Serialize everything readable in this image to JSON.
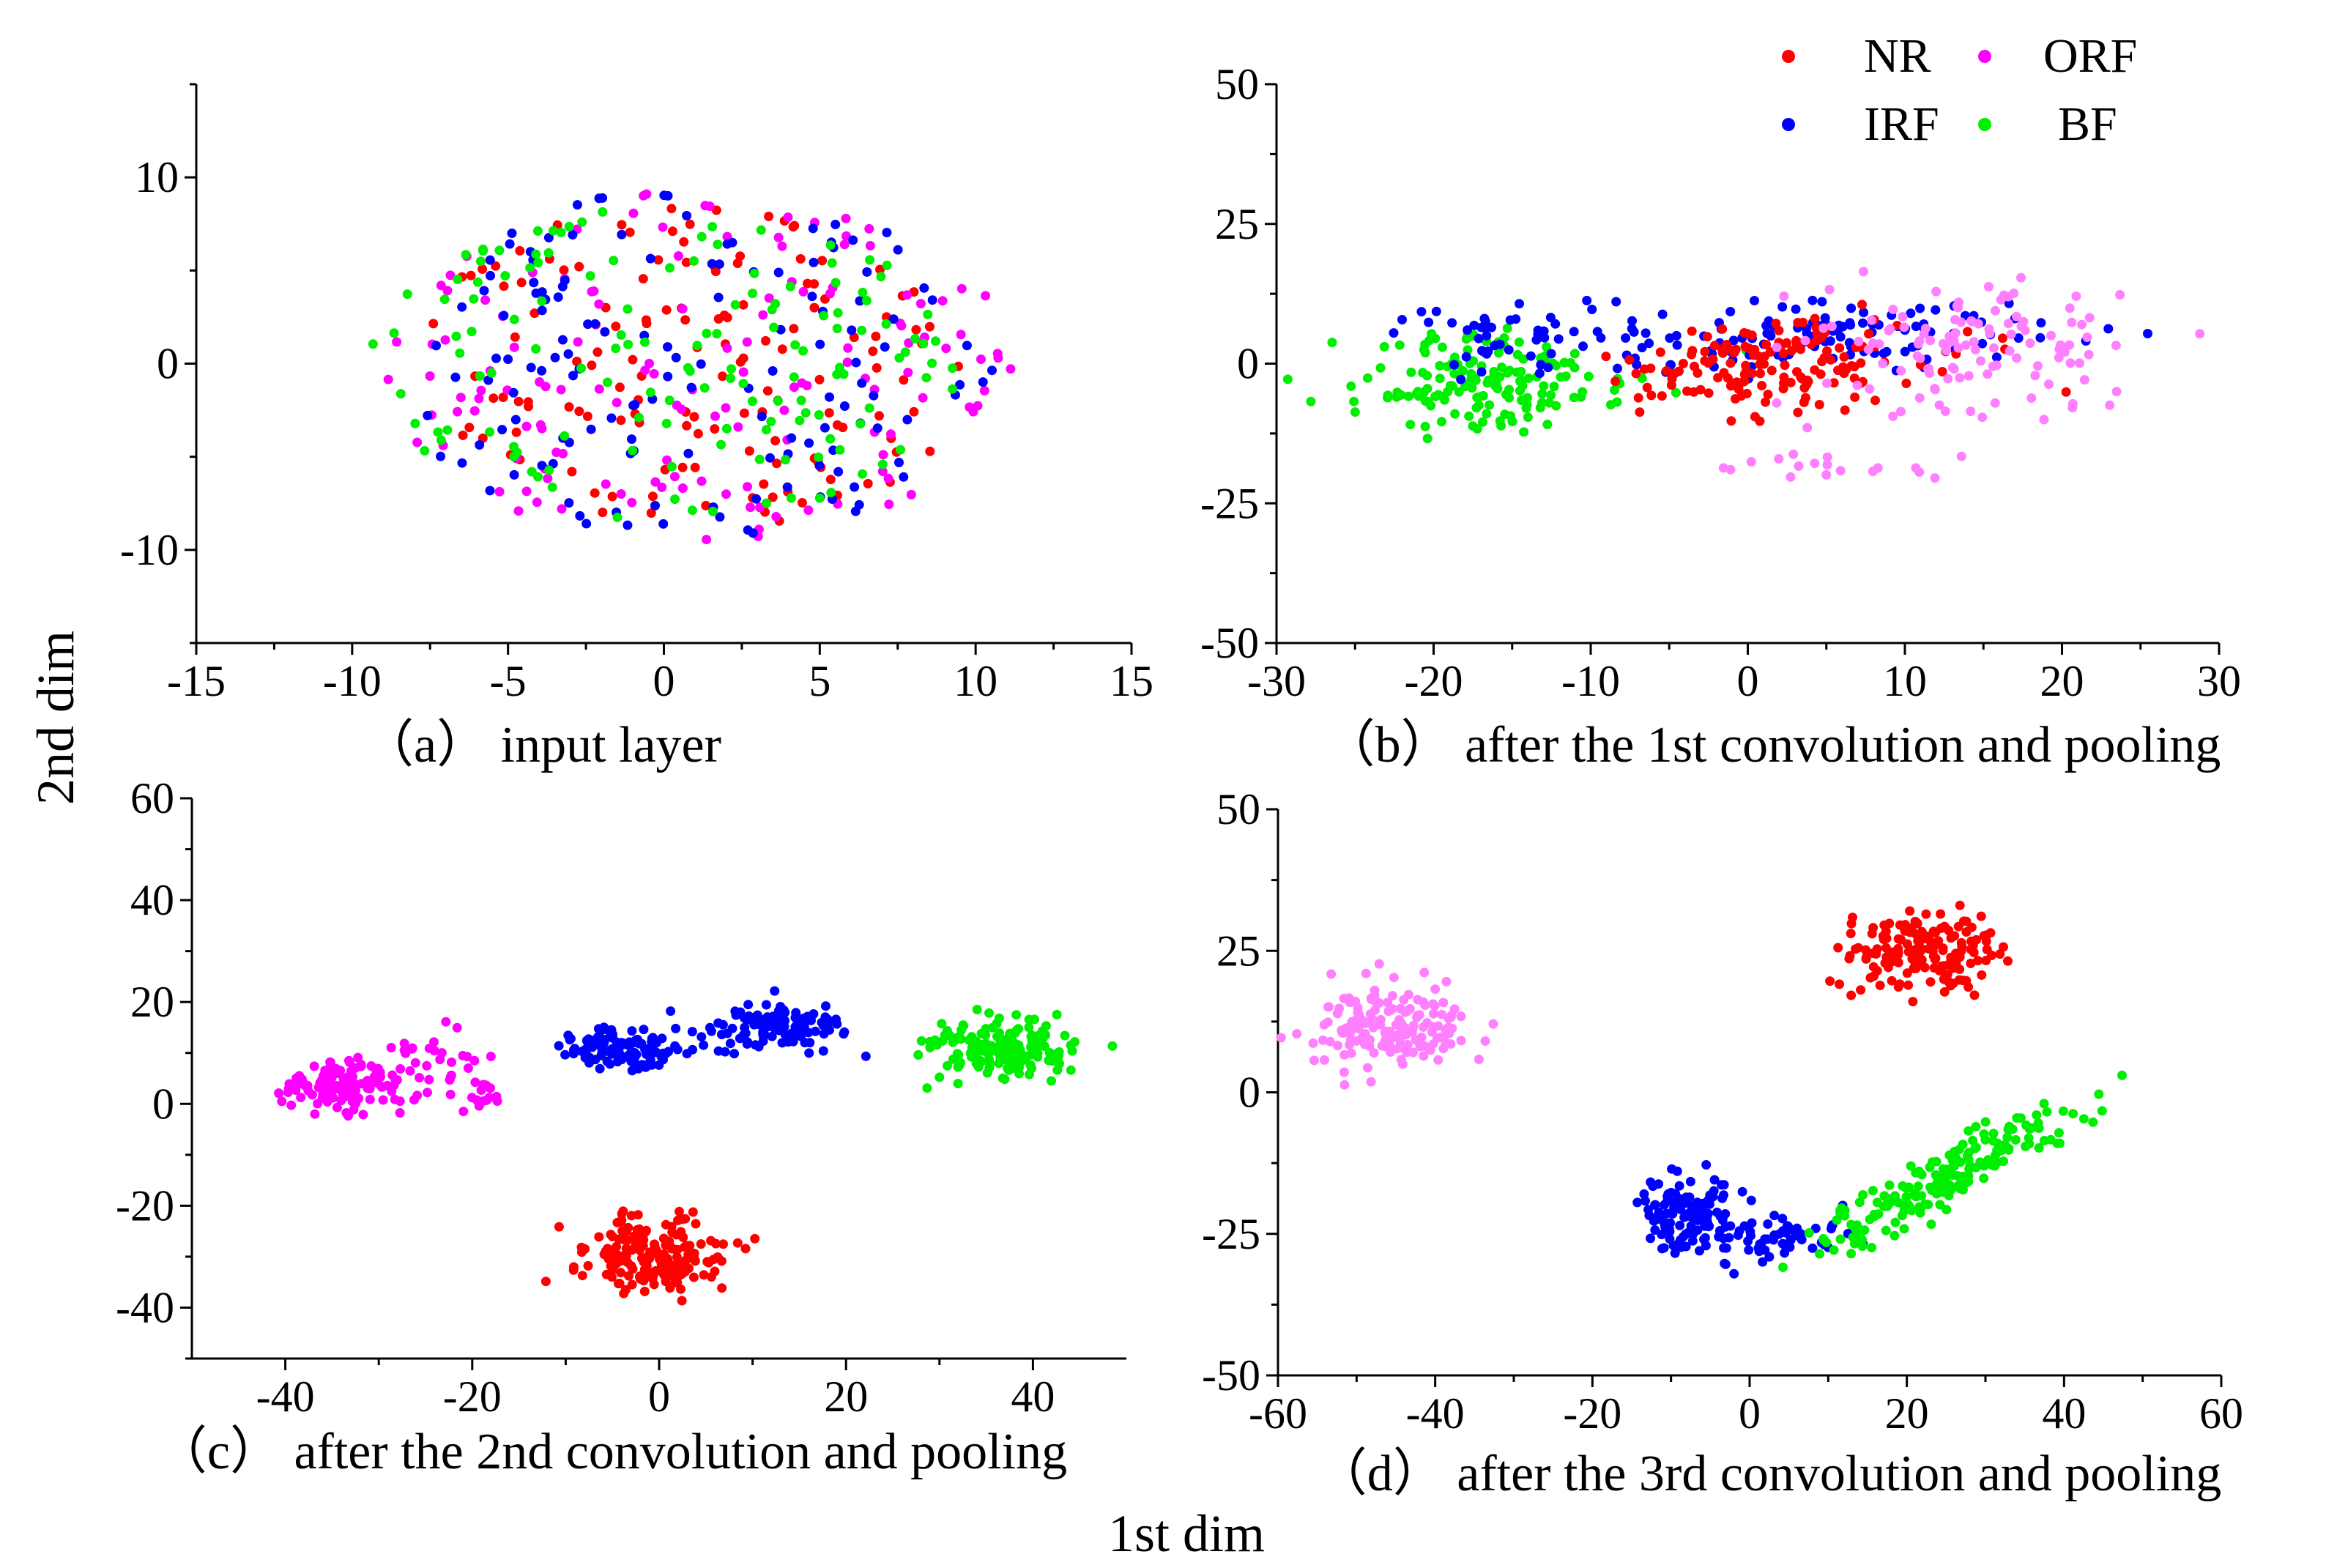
{
  "figure": {
    "shared_xlabel": "1st dim",
    "shared_ylabel": "2nd dim",
    "legend": {
      "entries": [
        {
          "key": "NR",
          "label": "NR",
          "color": "#ff0000"
        },
        {
          "key": "ORF",
          "label": "ORF",
          "color": "#ff00ff"
        },
        {
          "key": "IRF",
          "label": "IRF",
          "color": "#0000ff"
        },
        {
          "key": "BF",
          "label": "BF",
          "color": "#00ee00"
        }
      ],
      "placement": "top-right of panel (b)"
    }
  },
  "chart_data": [
    {
      "id": "a",
      "type": "scatter",
      "caption": "（a） input layer",
      "xlim": [
        -15,
        15
      ],
      "ylim": [
        -15,
        15
      ],
      "xticks": [
        -15,
        -10,
        -5,
        0,
        5,
        10,
        15
      ],
      "yticks": [
        -10,
        0,
        10
      ],
      "series_colors": {
        "NR": "#ff0000",
        "ORF": "#ff00ff",
        "IRF": "#0000ff",
        "BF": "#00ee00"
      },
      "clusters": [
        {
          "series": "NR",
          "cx": 1,
          "cy": 0,
          "sx": 5.5,
          "sy": 4.8,
          "n": 140,
          "shape": "uniform-ellipse"
        },
        {
          "series": "ORF",
          "cx": 1,
          "cy": 0,
          "sx": 6.5,
          "sy": 5.0,
          "n": 140,
          "shape": "uniform-ellipse"
        },
        {
          "series": "IRF",
          "cx": 1,
          "cy": 0,
          "sx": 6.0,
          "sy": 5.0,
          "n": 140,
          "shape": "uniform-ellipse"
        },
        {
          "series": "BF",
          "cx": 0,
          "cy": 0,
          "sx": 6.0,
          "sy": 4.5,
          "n": 140,
          "shape": "uniform-ellipse"
        }
      ]
    },
    {
      "id": "b",
      "type": "scatter",
      "caption": "（b） after the 1st convolution and pooling",
      "xlim": [
        -30,
        30
      ],
      "ylim": [
        -50,
        50
      ],
      "xticks": [
        -30,
        -20,
        -10,
        0,
        10,
        20,
        30
      ],
      "yticks": [
        -50,
        -25,
        0,
        25,
        50
      ],
      "series_colors": {
        "NR": "#ff0000",
        "ORF": "#ff80ff",
        "IRF": "#0000ff",
        "BF": "#00ee00"
      },
      "clusters": [
        {
          "series": "BF",
          "cx": -16,
          "cy": -3,
          "sx": 5,
          "sy": 4,
          "n": 160
        },
        {
          "series": "IRF",
          "cx": -13,
          "cy": 4,
          "sx": 5,
          "sy": 4,
          "n": 60
        },
        {
          "series": "IRF",
          "cx": 6,
          "cy": 5,
          "sx": 7,
          "sy": 4,
          "n": 110
        },
        {
          "series": "NR",
          "cx": 2,
          "cy": 0,
          "sx": 5,
          "sy": 4,
          "n": 160
        },
        {
          "series": "ORF",
          "cx": 14,
          "cy": 2,
          "sx": 5,
          "sy": 6,
          "n": 120
        },
        {
          "series": "ORF",
          "cx": 3,
          "cy": -19,
          "sx": 5,
          "sy": 1.5,
          "n": 18
        }
      ]
    },
    {
      "id": "c",
      "type": "scatter",
      "caption": "（c） after the 2nd convolution and pooling",
      "xlim": [
        -50,
        50
      ],
      "ylim": [
        -50,
        60
      ],
      "xticks": [
        -40,
        -20,
        0,
        20,
        40
      ],
      "yticks": [
        -40,
        -20,
        0,
        20,
        40,
        60
      ],
      "series_colors": {
        "NR": "#ff0000",
        "ORF": "#ff00ff",
        "IRF": "#0000ff",
        "BF": "#00ee00"
      },
      "clusters": [
        {
          "series": "ORF",
          "cx": -34,
          "cy": 3,
          "sx": 3,
          "sy": 2.5,
          "n": 110
        },
        {
          "series": "ORF",
          "cx": -26,
          "cy": 8,
          "sx": 4,
          "sy": 3.5,
          "n": 40
        },
        {
          "series": "ORF",
          "cx": -19,
          "cy": 2,
          "sx": 1,
          "sy": 2,
          "n": 14
        },
        {
          "series": "IRF",
          "cx": -4,
          "cy": 11,
          "sx": 3,
          "sy": 2.2,
          "n": 110
        },
        {
          "series": "IRF",
          "cx": 12,
          "cy": 15,
          "sx": 4,
          "sy": 2.2,
          "n": 110
        },
        {
          "series": "BF",
          "cx": 37,
          "cy": 11,
          "sx": 4,
          "sy": 3,
          "n": 170
        },
        {
          "series": "NR",
          "cx": -1,
          "cy": -30,
          "sx": 4,
          "sy": 3.5,
          "n": 180
        }
      ]
    },
    {
      "id": "d",
      "type": "scatter",
      "caption": "（d） after the 3rd convolution and pooling",
      "xlim": [
        -60,
        60
      ],
      "ylim": [
        -50,
        50
      ],
      "xticks": [
        -60,
        -40,
        -20,
        0,
        20,
        40,
        60
      ],
      "yticks": [
        -50,
        -25,
        0,
        25,
        50
      ],
      "series_colors": {
        "NR": "#ff0000",
        "ORF": "#ff80ff",
        "IRF": "#0000ff",
        "BF": "#00ee00"
      },
      "clusters": [
        {
          "series": "ORF",
          "cx": -45,
          "cy": 12,
          "sx": 5,
          "sy": 4,
          "n": 160
        },
        {
          "series": "NR",
          "cx": 22,
          "cy": 25,
          "sx": 4.5,
          "sy": 3.5,
          "n": 170
        },
        {
          "series": "IRF",
          "cx": -8,
          "cy": -21,
          "sx": 3,
          "sy": 3,
          "n": 110
        },
        {
          "series": "IRF",
          "cx": 3,
          "cy": -26,
          "sx": 5,
          "sy": 2.5,
          "n": 70
        },
        {
          "series": "BF",
          "cx": 25,
          "cy": -15,
          "sx": 8,
          "sy": 2.5,
          "n": 190,
          "slope": 0.7
        }
      ]
    }
  ]
}
